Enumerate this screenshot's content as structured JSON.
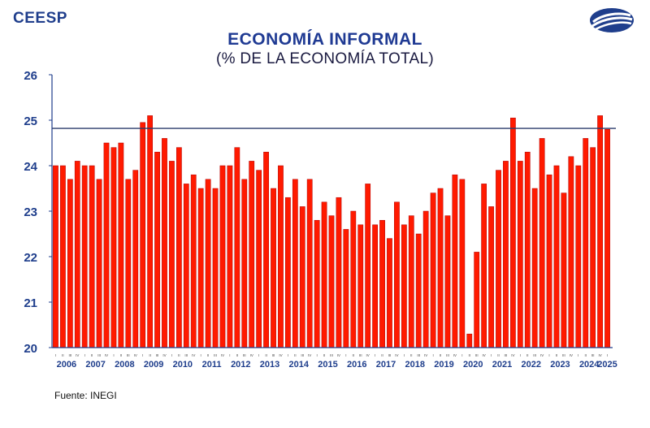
{
  "header": {
    "brand": "CEESP",
    "logo_icon": "ceesp-globe-logo",
    "title": "ECONOMÍA INFORMAL",
    "subtitle": "(% DE LA ECONOMÍA TOTAL)"
  },
  "footer": {
    "source": "Fuente: INEGI"
  },
  "colors": {
    "bar": "#ff1a00",
    "bar_edge": "#b00000",
    "axis": "#1f3e8c",
    "text": "#1f3e8c"
  },
  "chart_data": {
    "type": "bar",
    "title": "ECONOMÍA INFORMAL",
    "subtitle": "(% DE LA ECONOMÍA TOTAL)",
    "ylim": [
      20,
      26
    ],
    "yticks": [
      20,
      21,
      22,
      23,
      24,
      25,
      26
    ],
    "reference_line": 24.82,
    "quarter_labels": [
      "I",
      "II",
      "III",
      "IV"
    ],
    "years": [
      "2006",
      "2007",
      "2008",
      "2009",
      "2010",
      "2011",
      "2012",
      "2013",
      "2014",
      "2015",
      "2016",
      "2017",
      "2018",
      "2019",
      "2020",
      "2021",
      "2022",
      "2023",
      "2024",
      "2025"
    ],
    "categories": [
      "2006-I",
      "2006-II",
      "2006-III",
      "2006-IV",
      "2007-I",
      "2007-II",
      "2007-III",
      "2007-IV",
      "2008-I",
      "2008-II",
      "2008-III",
      "2008-IV",
      "2009-I",
      "2009-II",
      "2009-III",
      "2009-IV",
      "2010-I",
      "2010-II",
      "2010-III",
      "2010-IV",
      "2011-I",
      "2011-II",
      "2011-III",
      "2011-IV",
      "2012-I",
      "2012-II",
      "2012-III",
      "2012-IV",
      "2013-I",
      "2013-II",
      "2013-III",
      "2013-IV",
      "2014-I",
      "2014-II",
      "2014-III",
      "2014-IV",
      "2015-I",
      "2015-II",
      "2015-III",
      "2015-IV",
      "2016-I",
      "2016-II",
      "2016-III",
      "2016-IV",
      "2017-I",
      "2017-II",
      "2017-III",
      "2017-IV",
      "2018-I",
      "2018-II",
      "2018-III",
      "2018-IV",
      "2019-I",
      "2019-II",
      "2019-III",
      "2019-IV",
      "2020-I",
      "2020-II",
      "2020-III",
      "2020-IV",
      "2021-I",
      "2021-II",
      "2021-III",
      "2021-IV",
      "2022-I",
      "2022-II",
      "2022-III",
      "2022-IV",
      "2023-I",
      "2023-II",
      "2023-III",
      "2023-IV",
      "2024-I",
      "2024-II",
      "2024-III",
      "2024-IV",
      "2025-I"
    ],
    "values": [
      24.0,
      24.0,
      23.7,
      24.1,
      24.0,
      24.0,
      23.7,
      24.5,
      24.4,
      24.5,
      23.7,
      23.9,
      24.95,
      25.1,
      24.3,
      24.6,
      24.1,
      24.4,
      23.6,
      23.8,
      23.5,
      23.7,
      23.5,
      24.0,
      24.0,
      24.4,
      23.7,
      24.1,
      23.9,
      24.3,
      23.5,
      24.0,
      23.3,
      23.7,
      23.1,
      23.7,
      22.8,
      23.2,
      22.9,
      23.3,
      22.6,
      23.0,
      22.7,
      23.6,
      22.7,
      22.8,
      22.4,
      23.2,
      22.7,
      22.9,
      22.5,
      23.0,
      23.4,
      23.5,
      22.9,
      23.8,
      23.7,
      20.3,
      22.1,
      23.6,
      23.1,
      23.9,
      24.1,
      25.05,
      24.1,
      24.3,
      23.5,
      24.6,
      23.8,
      24.0,
      23.4,
      24.2,
      24.0,
      24.6,
      24.4,
      25.1,
      24.8
    ]
  }
}
